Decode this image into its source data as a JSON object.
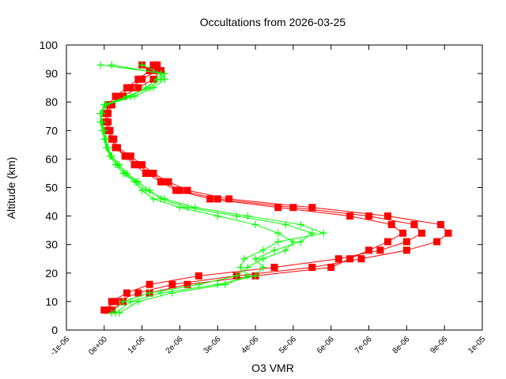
{
  "chart_data": {
    "type": "scatter",
    "title": "Occultations from 2026-03-25",
    "xlabel": "O3 VMR",
    "ylabel": "Altitude (km)",
    "xlim": [
      -1e-06,
      1e-05
    ],
    "ylim": [
      0,
      100
    ],
    "xticks": [
      "-1e-06",
      "0e+00",
      "1e-06",
      "2e-06",
      "3e-06",
      "4e-06",
      "5e-06",
      "6e-06",
      "7e-06",
      "8e-06",
      "9e-06",
      "1e-05"
    ],
    "yticks": [
      "0",
      "10",
      "20",
      "30",
      "40",
      "50",
      "60",
      "70",
      "80",
      "90",
      "100"
    ],
    "grid": false,
    "legend": "none",
    "series": [
      {
        "color": "#ff0000",
        "marker": "filled-square",
        "altitudes": [
          7,
          10,
          13,
          16,
          19,
          22,
          25,
          28,
          31,
          34,
          37,
          40,
          43,
          46,
          49,
          52,
          55,
          58,
          61,
          64,
          67,
          70,
          73,
          76,
          79,
          82,
          85,
          88,
          91,
          93
        ],
        "profiles": [
          [
            1e-07,
            2e-07,
            6e-07,
            1.2e-06,
            2.5e-06,
            4.5e-06,
            6.2e-06,
            7.3e-06,
            8e-06,
            8.4e-06,
            8.2e-06,
            7e-06,
            5e-06,
            3e-06,
            2e-06,
            1.6e-06,
            1.2e-06,
            9e-07,
            6e-07,
            3e-07,
            2e-07,
            1e-07,
            5e-08,
            5e-08,
            1e-07,
            3e-07,
            6e-07,
            9e-07,
            1.2e-06,
            1e-06
          ],
          [
            0,
            3e-07,
            9e-07,
            1.8e-06,
            3.5e-06,
            5.5e-06,
            6.8e-06,
            8e-06,
            8.8e-06,
            9.1e-06,
            8.9e-06,
            7.5e-06,
            5.5e-06,
            3.3e-06,
            2.2e-06,
            1.7e-06,
            1.3e-06,
            1e-06,
            7e-07,
            3.5e-07,
            2.5e-07,
            1.5e-07,
            1e-07,
            1e-07,
            2e-07,
            5e-07,
            9e-07,
            1.3e-06,
            1.5e-06,
            1.4e-06
          ],
          [
            2e-07,
            5e-07,
            1.2e-06,
            2.2e-06,
            4e-06,
            6e-06,
            6.5e-06,
            7e-06,
            7.5e-06,
            7.9e-06,
            7.6e-06,
            6.5e-06,
            4.6e-06,
            2.8e-06,
            1.9e-06,
            1.5e-06,
            1.1e-06,
            8e-07,
            5.5e-07,
            3e-07,
            2e-07,
            1e-07,
            5e-08,
            5e-08,
            1.5e-07,
            4e-07,
            7e-07,
            1e-06,
            1.4e-06,
            1.3e-06
          ]
        ]
      },
      {
        "color": "#00ff00",
        "marker": "plus",
        "altitudes": [
          6,
          10,
          13,
          16,
          19,
          22,
          25,
          28,
          31,
          34,
          37,
          40,
          43,
          46,
          49,
          52,
          55,
          58,
          61,
          64,
          67,
          70,
          73,
          76,
          79,
          82,
          85,
          88,
          90,
          93
        ],
        "profiles": [
          [
            3e-07,
            7e-07,
            1.5e-06,
            3e-06,
            4e-06,
            4.2e-06,
            4e-06,
            4.5e-06,
            5.2e-06,
            5.5e-06,
            4.8e-06,
            3.5e-06,
            2.2e-06,
            1.5e-06,
            1.2e-06,
            9e-07,
            6e-07,
            4e-07,
            2e-07,
            1e-07,
            5e-08,
            0,
            -5e-08,
            -1e-07,
            0,
            6e-07,
            1.2e-06,
            1.5e-06,
            1.6e-06,
            -1e-07
          ],
          [
            2e-07,
            5e-07,
            1.2e-06,
            2.5e-06,
            3.5e-06,
            3.8e-06,
            4.2e-06,
            4.8e-06,
            5e-06,
            4.6e-06,
            4e-06,
            3e-06,
            2e-06,
            1.3e-06,
            1e-06,
            8e-07,
            5e-07,
            3e-07,
            1.5e-07,
            5e-08,
            0,
            -5e-08,
            -1e-07,
            -5e-08,
            5e-08,
            8e-07,
            1.3e-06,
            1.6e-06,
            1.5e-06,
            2e-07
          ],
          [
            4e-07,
            9e-07,
            1.8e-06,
            3.2e-06,
            3.8e-06,
            3.6e-06,
            3.7e-06,
            4.2e-06,
            4.6e-06,
            5.8e-06,
            5.2e-06,
            3.8e-06,
            2.4e-06,
            1.6e-06,
            1.1e-06,
            8.5e-07,
            5.5e-07,
            3.5e-07,
            1.8e-07,
            8e-08,
            2e-08,
            -2e-08,
            -8e-08,
            -1e-07,
            2e-08,
            7e-07,
            1.1e-06,
            1.4e-06,
            1.5e-06,
            1e-06
          ]
        ]
      }
    ]
  }
}
